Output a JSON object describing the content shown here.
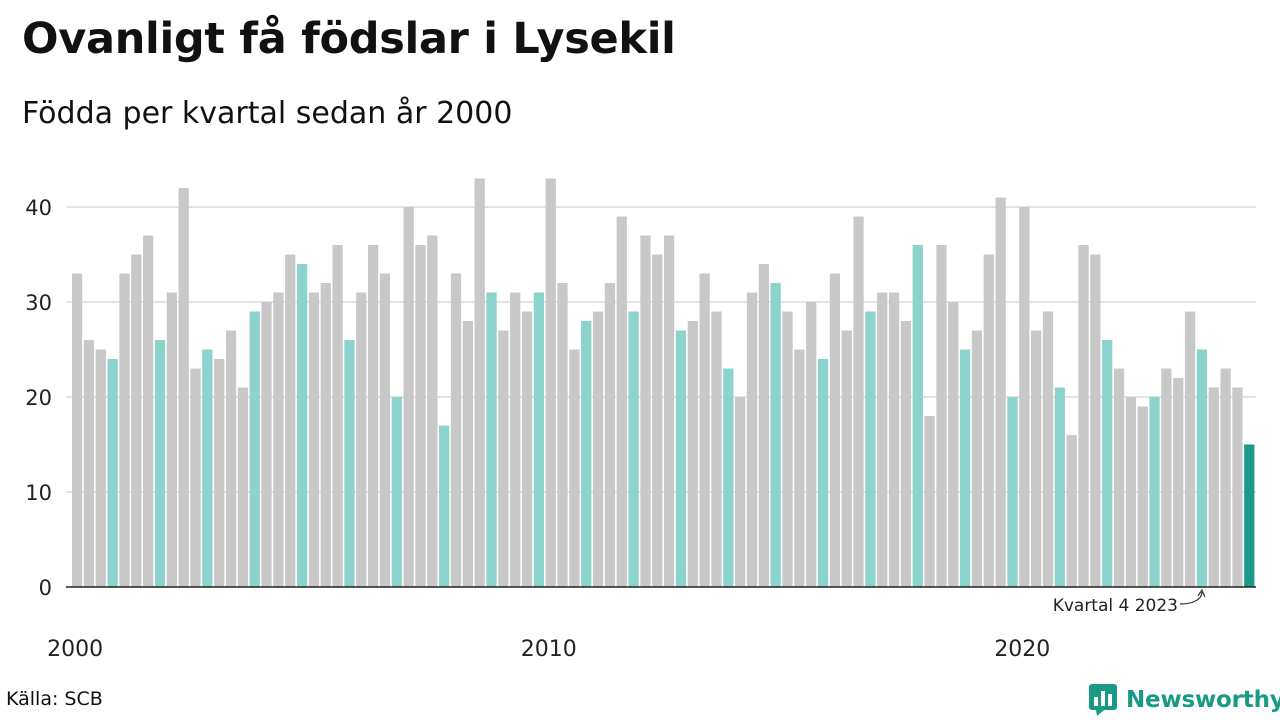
{
  "title": "Ovanligt få födslar i Lysekil",
  "subtitle": "Födda per kvartal sedan år 2000",
  "source": "Källa: SCB",
  "brand": {
    "name": "Newsworthy",
    "icon": "newsworthy-logo-icon"
  },
  "colors": {
    "bar": "#c8c8c8",
    "highlight": "#8bd3cc",
    "last": "#1a9a86",
    "grid": "#e3e3e3",
    "axis": "#222222",
    "brand": "#1a9a86"
  },
  "chart_data": {
    "type": "bar",
    "x_start": "2000 Q1",
    "x_tick_labels": [
      "2000",
      "2010",
      "2020"
    ],
    "y_ticks": [
      0,
      10,
      20,
      30,
      40
    ],
    "ylim": [
      0,
      45
    ],
    "grid": true,
    "highlight_quarter": "Q4",
    "annotation": {
      "text": "Kvartal 4 2023",
      "target": "2023 Q4"
    },
    "series": [
      {
        "values": [
          33,
          26,
          25,
          24,
          33,
          35,
          37,
          26,
          31,
          42,
          23,
          25,
          24,
          27,
          21,
          29,
          30,
          31,
          35,
          34,
          31,
          32,
          36,
          26,
          31,
          36,
          33,
          20,
          40,
          36,
          37,
          17,
          33,
          28,
          43,
          31,
          27,
          31,
          29,
          31,
          43,
          32,
          25,
          28,
          29,
          32,
          39,
          29,
          37,
          35,
          37,
          27,
          28,
          33,
          29,
          23,
          20,
          31,
          34,
          32,
          29,
          25,
          30,
          24,
          33,
          27,
          39,
          29,
          31,
          31,
          28,
          36,
          18,
          36,
          30,
          25,
          27,
          35,
          41,
          20,
          40,
          27,
          29,
          21,
          16,
          36,
          35,
          26,
          23,
          20,
          19,
          20,
          23,
          22,
          29,
          25,
          21,
          23,
          21,
          15
        ]
      }
    ]
  }
}
